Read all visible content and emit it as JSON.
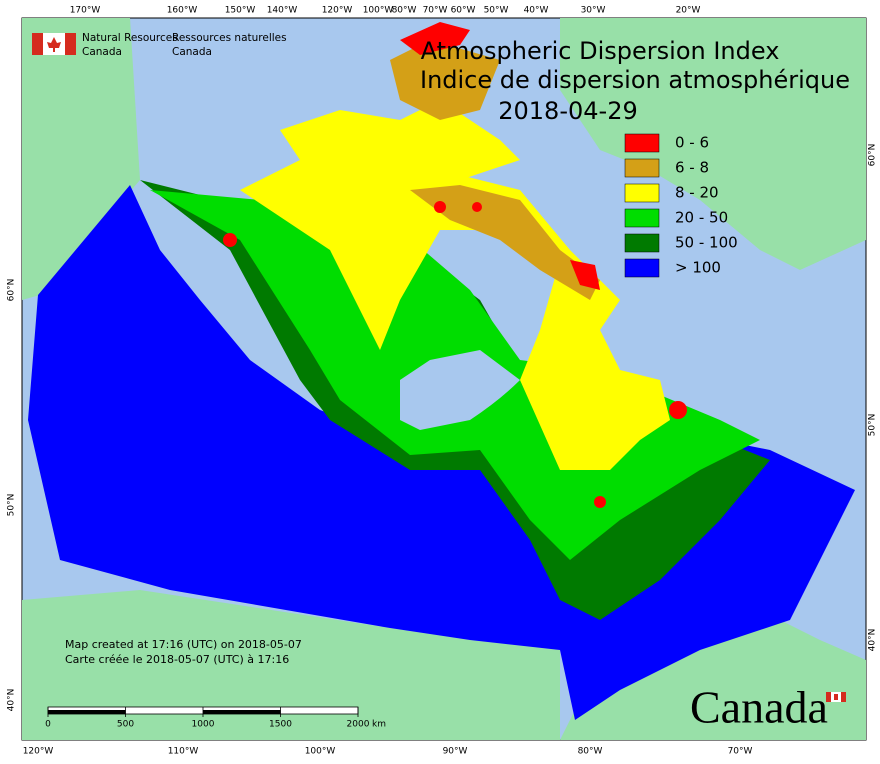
{
  "header": {
    "title": "Atmospheric Dispersion Index",
    "title_fr": "Indice de dispersion atmosphérique",
    "date": "2018-04-29"
  },
  "logo": {
    "en_line1": "Natural Resources",
    "en_line2": "Canada",
    "fr_line1": "Ressources naturelles",
    "fr_line2": "Canada"
  },
  "legend": [
    {
      "label": "0 - 6",
      "color": "#ff0000"
    },
    {
      "label": "6 - 8",
      "color": "#d4a017"
    },
    {
      "label": "8 - 20",
      "color": "#ffff00"
    },
    {
      "label": "20 - 50",
      "color": "#00dd00"
    },
    {
      "label": "50 - 100",
      "color": "#007a00"
    },
    {
      "label": "> 100",
      "color": "#0000ff"
    }
  ],
  "graticule": {
    "top": [
      "170°W",
      "160°W",
      "150°W",
      "140°W",
      "120°W",
      "100°W",
      "80°W",
      "70°W",
      "60°W",
      "50°W",
      "40°W",
      "30°W",
      "20°W"
    ],
    "bottom": [
      "120°W",
      "110°W",
      "100°W",
      "90°W",
      "80°W",
      "70°W"
    ],
    "left": [
      "60°N",
      "50°N",
      "40°N"
    ],
    "right": [
      "60°N",
      "50°N",
      "40°N"
    ]
  },
  "credits": [
    "Map created at 17:16 (UTC) on 2018-05-07",
    "Carte créée le 2018-05-07 (UTC) à 17:16"
  ],
  "scale": {
    "ticks": [
      0,
      500,
      1000,
      1500,
      2000
    ],
    "unit": "km"
  },
  "wordmark": "Canada"
}
